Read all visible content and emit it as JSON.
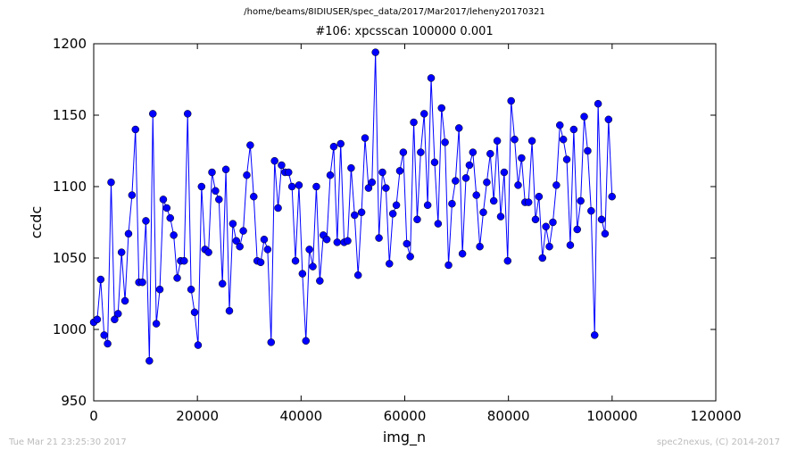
{
  "chart_data": {
    "type": "line",
    "title": "#106: xpcsscan 100000 0.001",
    "suptitle": "/home/beams/8IDIUSER/spec_data/2017/Mar2017/leheny20170321",
    "xlabel": "img_n",
    "ylabel": "ccdc",
    "footer_left": "Tue Mar 21 23:25:30 2017",
    "footer_right": "spec2nexus, (C) 2014-2017",
    "xlim": [
      0,
      120000
    ],
    "xticks": [
      0,
      20000,
      40000,
      60000,
      80000,
      100000,
      120000
    ],
    "ylim": [
      950,
      1200
    ],
    "yticks": [
      950,
      1000,
      1050,
      1100,
      1150,
      1200
    ],
    "grid": false,
    "x": [
      0,
      671,
      1342,
      2013,
      2684,
      3355,
      4026,
      4697,
      5368,
      6039,
      6710,
      7381,
      8052,
      8723,
      9394,
      10065,
      10736,
      11407,
      12078,
      12749,
      13420,
      14091,
      14762,
      15433,
      16104,
      16775,
      17446,
      18117,
      18788,
      19459,
      20130,
      20801,
      21472,
      22143,
      22814,
      23485,
      24156,
      24827,
      25498,
      26169,
      26840,
      27511,
      28182,
      28853,
      29524,
      30195,
      30866,
      31537,
      32208,
      32879,
      33550,
      34221,
      34892,
      35563,
      36234,
      36905,
      37576,
      38247,
      38918,
      39589,
      40260,
      40931,
      41602,
      42273,
      42944,
      43615,
      44286,
      44957,
      45628,
      46299,
      46970,
      47641,
      48312,
      48983,
      49654,
      50325,
      50996,
      51667,
      52338,
      53009,
      53680,
      54351,
      55022,
      55693,
      56364,
      57035,
      57706,
      58377,
      59048,
      59719,
      60390,
      61061,
      61732,
      62403,
      63074,
      63745,
      64416,
      65087,
      65758,
      66429,
      67100,
      67771,
      68442,
      69113,
      69784,
      70455,
      71126,
      71797,
      72468,
      73139,
      73810,
      74481,
      75152,
      75823,
      76494,
      77165,
      77836,
      78507,
      79178,
      79849,
      80520,
      81191,
      81862,
      82533,
      83204,
      83875,
      84546,
      85217,
      85888,
      86559,
      87230,
      87901,
      88572,
      89243,
      89914,
      90585,
      91256,
      91927,
      92598,
      93269,
      93940,
      94611,
      95282,
      95953,
      96624,
      97295,
      97966,
      98637,
      99308,
      99979
    ],
    "series": [
      {
        "name": "ccdc",
        "color": "#0000ff",
        "values": [
          1005,
          1007,
          1035,
          996,
          990,
          1103,
          1007,
          1011,
          1054,
          1020,
          1067,
          1094,
          1140,
          1033,
          1033,
          1076,
          978,
          1151,
          1004,
          1028,
          1091,
          1085,
          1078,
          1066,
          1036,
          1048,
          1048,
          1151,
          1028,
          1012,
          989,
          1100,
          1056,
          1054,
          1110,
          1097,
          1091,
          1032,
          1112,
          1013,
          1074,
          1062,
          1058,
          1069,
          1108,
          1129,
          1093,
          1048,
          1047,
          1063,
          1056,
          991,
          1118,
          1085,
          1115,
          1110,
          1110,
          1100,
          1048,
          1101,
          1039,
          992,
          1056,
          1044,
          1100,
          1034,
          1066,
          1063,
          1108,
          1128,
          1061,
          1130,
          1061,
          1062,
          1113,
          1080,
          1038,
          1082,
          1134,
          1099,
          1103,
          1194,
          1064,
          1110,
          1099,
          1046,
          1081,
          1087,
          1111,
          1124,
          1060,
          1051,
          1145,
          1077,
          1124,
          1151,
          1087,
          1176,
          1117,
          1074,
          1155,
          1131,
          1045,
          1088,
          1104,
          1141,
          1053,
          1106,
          1115,
          1124,
          1094,
          1058,
          1082,
          1103,
          1123,
          1090,
          1132,
          1079,
          1110,
          1048,
          1160,
          1133,
          1101,
          1120,
          1089,
          1089,
          1132,
          1077,
          1093,
          1050,
          1072,
          1058,
          1075,
          1101,
          1143,
          1133,
          1119,
          1059,
          1140,
          1070,
          1090,
          1149,
          1125,
          1083,
          996,
          1158,
          1077,
          1067,
          1147,
          1093
        ]
      }
    ]
  }
}
